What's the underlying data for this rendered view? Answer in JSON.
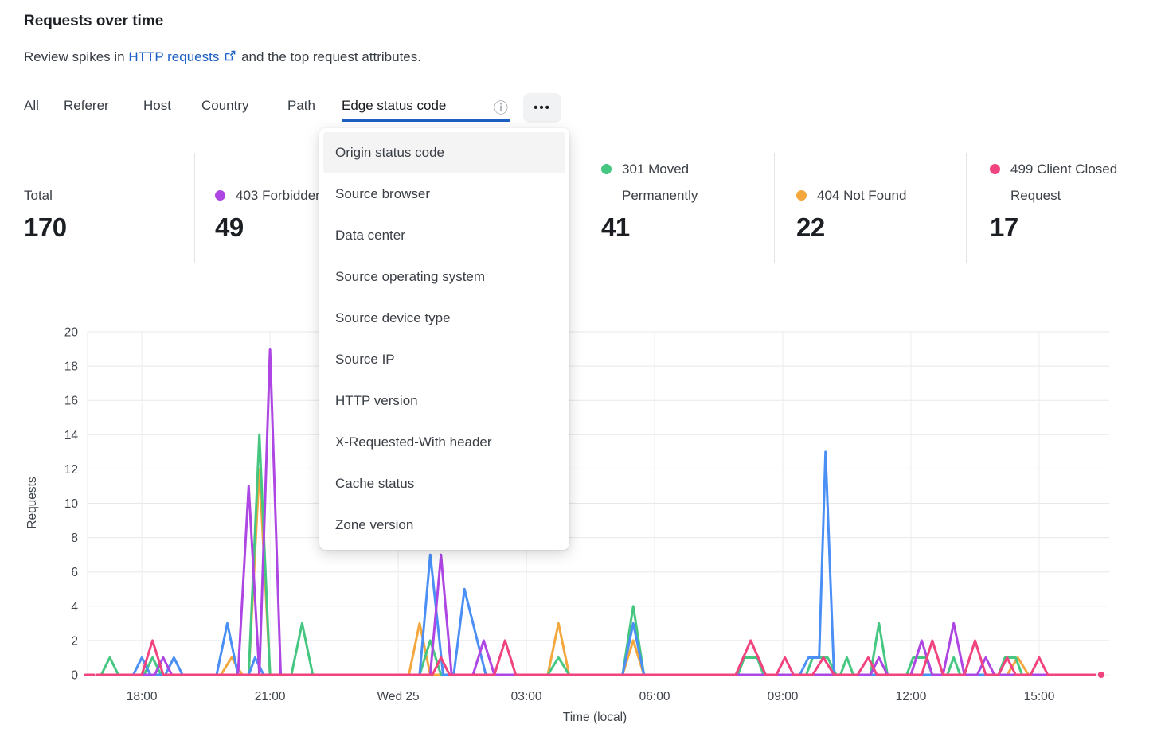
{
  "page": {
    "title": "Requests over time",
    "subtitle_prefix": "Review spikes in",
    "subtitle_link": "HTTP requests",
    "subtitle_suffix": "and the top request attributes."
  },
  "tabs": {
    "items": [
      {
        "label": "All",
        "active": false
      },
      {
        "label": "Referer",
        "active": false
      },
      {
        "label": "Host",
        "active": false
      },
      {
        "label": "Country",
        "active": false
      },
      {
        "label": "Path",
        "active": false
      },
      {
        "label": "Edge status code",
        "active": true
      }
    ],
    "more_label": "•••",
    "info_icon": "ⓘ",
    "active_underline_color": "#1d5fc4"
  },
  "dropdown": {
    "highlighted_index": 0,
    "items": [
      "Origin status code",
      "Source browser",
      "Data center",
      "Source operating system",
      "Source device type",
      "Source IP",
      "HTTP version",
      "X-Requested-With header",
      "Cache status",
      "Zone version"
    ]
  },
  "stats": [
    {
      "label": "Total",
      "value": "170",
      "color": null
    },
    {
      "label": "403 Forbidden",
      "value": "49",
      "color": "#ad46e3"
    },
    {
      "label": "",
      "value": "",
      "color": null,
      "obscured_by_menu": true
    },
    {
      "label": "301 Moved Permanently",
      "value": "41",
      "color": "#45c781"
    },
    {
      "label": "404 Not Found",
      "value": "22",
      "color": "#f3a73c"
    },
    {
      "label": "499 Client Closed Request",
      "value": "17",
      "color": "#f0437f"
    }
  ],
  "chart_data": {
    "type": "line",
    "title": "Requests over time",
    "xlabel": "Time (local)",
    "ylabel": "Requests",
    "ylim": [
      0,
      20
    ],
    "grid": true,
    "y_ticks": [
      0,
      2,
      4,
      6,
      8,
      10,
      12,
      14,
      16,
      18,
      20
    ],
    "x_unit": "decimal hours, 24 = midnight Wed 25",
    "x_domain": [
      16.73,
      40.64
    ],
    "x_ticks": [
      {
        "t": 18,
        "label": "18:00"
      },
      {
        "t": 21,
        "label": "21:00"
      },
      {
        "t": 24,
        "label": "Wed 25"
      },
      {
        "t": 27,
        "label": "03:00"
      },
      {
        "t": 30,
        "label": "06:00"
      },
      {
        "t": 33,
        "label": "09:00"
      },
      {
        "t": 36,
        "label": "12:00"
      },
      {
        "t": 39,
        "label": "15:00"
      }
    ],
    "series": [
      {
        "name": "404 Not Found",
        "color": "#f3a73c",
        "points": [
          [
            16.95,
            0
          ],
          [
            19.85,
            0
          ],
          [
            20.1,
            1
          ],
          [
            20.35,
            0
          ],
          [
            20.5,
            0
          ],
          [
            20.75,
            12
          ],
          [
            21.0,
            0
          ],
          [
            24.25,
            0
          ],
          [
            24.5,
            3
          ],
          [
            24.75,
            0
          ],
          [
            27.5,
            0
          ],
          [
            27.75,
            3
          ],
          [
            28.0,
            0
          ],
          [
            29.25,
            0
          ],
          [
            29.5,
            2
          ],
          [
            29.75,
            0
          ],
          [
            38.25,
            0
          ],
          [
            38.5,
            1
          ],
          [
            38.75,
            0
          ],
          [
            40.3,
            0
          ]
        ]
      },
      {
        "name": "301 Moved Permanently",
        "color": "#45c781",
        "points": [
          [
            16.95,
            0
          ],
          [
            17.05,
            0
          ],
          [
            17.25,
            1
          ],
          [
            17.45,
            0
          ],
          [
            18.05,
            0
          ],
          [
            18.25,
            1
          ],
          [
            18.45,
            0
          ],
          [
            20.5,
            0
          ],
          [
            20.75,
            14
          ],
          [
            21.0,
            0
          ],
          [
            21.5,
            0
          ],
          [
            21.75,
            3
          ],
          [
            22.0,
            0
          ],
          [
            24.5,
            0
          ],
          [
            24.75,
            2
          ],
          [
            25.0,
            0
          ],
          [
            27.5,
            0
          ],
          [
            27.75,
            1
          ],
          [
            28.0,
            0
          ],
          [
            29.25,
            0
          ],
          [
            29.5,
            4
          ],
          [
            29.75,
            0
          ],
          [
            31.95,
            0
          ],
          [
            32.1,
            1
          ],
          [
            32.4,
            1
          ],
          [
            32.55,
            0
          ],
          [
            33.55,
            0
          ],
          [
            33.7,
            1
          ],
          [
            34.05,
            1
          ],
          [
            34.25,
            0
          ],
          [
            34.35,
            0
          ],
          [
            34.5,
            1
          ],
          [
            34.65,
            0
          ],
          [
            35.05,
            0
          ],
          [
            35.25,
            3
          ],
          [
            35.45,
            0
          ],
          [
            35.9,
            0
          ],
          [
            36.05,
            1
          ],
          [
            36.35,
            1
          ],
          [
            36.5,
            0
          ],
          [
            36.85,
            0
          ],
          [
            37.0,
            1
          ],
          [
            37.15,
            0
          ],
          [
            38.05,
            0
          ],
          [
            38.2,
            1
          ],
          [
            38.45,
            1
          ],
          [
            38.6,
            0
          ],
          [
            40.3,
            0
          ]
        ]
      },
      {
        "name": "",
        "label_obscured_by_menu": true,
        "color": "#4a8ff5",
        "points": [
          [
            16.95,
            0
          ],
          [
            17.8,
            0
          ],
          [
            18.0,
            1
          ],
          [
            18.2,
            0
          ],
          [
            18.55,
            0
          ],
          [
            18.75,
            1
          ],
          [
            18.95,
            0
          ],
          [
            19.75,
            0
          ],
          [
            20.0,
            3
          ],
          [
            20.25,
            0
          ],
          [
            20.5,
            0
          ],
          [
            20.65,
            1
          ],
          [
            20.85,
            0
          ],
          [
            24.5,
            0
          ],
          [
            24.75,
            7
          ],
          [
            25.05,
            0
          ],
          [
            25.3,
            0
          ],
          [
            25.55,
            5
          ],
          [
            26.05,
            0
          ],
          [
            29.25,
            0
          ],
          [
            29.5,
            3
          ],
          [
            29.75,
            0
          ],
          [
            33.4,
            0
          ],
          [
            33.6,
            1
          ],
          [
            33.85,
            1
          ],
          [
            34.0,
            13
          ],
          [
            34.2,
            0
          ],
          [
            40.3,
            0
          ]
        ]
      },
      {
        "name": "403 Forbidden",
        "color": "#ad46e3",
        "points": [
          [
            16.95,
            0
          ],
          [
            18.3,
            0
          ],
          [
            18.5,
            1
          ],
          [
            18.7,
            0
          ],
          [
            20.25,
            0
          ],
          [
            20.5,
            11
          ],
          [
            20.75,
            0
          ],
          [
            21.0,
            19
          ],
          [
            21.25,
            0
          ],
          [
            24.75,
            0
          ],
          [
            25.0,
            7
          ],
          [
            25.25,
            0
          ],
          [
            25.75,
            0
          ],
          [
            26.0,
            2
          ],
          [
            26.25,
            0
          ],
          [
            35.05,
            0
          ],
          [
            35.25,
            1
          ],
          [
            35.45,
            0
          ],
          [
            36.0,
            0
          ],
          [
            36.25,
            2
          ],
          [
            36.5,
            0
          ],
          [
            36.75,
            0
          ],
          [
            37.0,
            3
          ],
          [
            37.25,
            0
          ],
          [
            37.55,
            0
          ],
          [
            37.75,
            1
          ],
          [
            37.95,
            0
          ],
          [
            40.3,
            0
          ]
        ]
      },
      {
        "name": "499 Client Closed Request",
        "color": "#f0437f",
        "lead_in": [
          [
            16.68,
            0
          ],
          [
            16.88,
            0
          ]
        ],
        "end_dot_t": 40.45,
        "points": [
          [
            16.95,
            0
          ],
          [
            18.0,
            0
          ],
          [
            18.25,
            2
          ],
          [
            18.5,
            0
          ],
          [
            24.8,
            0
          ],
          [
            25.0,
            1
          ],
          [
            25.2,
            0
          ],
          [
            26.25,
            0
          ],
          [
            26.5,
            2
          ],
          [
            26.75,
            0
          ],
          [
            31.9,
            0
          ],
          [
            32.25,
            2
          ],
          [
            32.6,
            0
          ],
          [
            32.85,
            0
          ],
          [
            33.05,
            1
          ],
          [
            33.25,
            0
          ],
          [
            33.7,
            0
          ],
          [
            33.95,
            1
          ],
          [
            34.2,
            0
          ],
          [
            34.75,
            0
          ],
          [
            35.0,
            1
          ],
          [
            35.2,
            0
          ],
          [
            36.25,
            0
          ],
          [
            36.5,
            2
          ],
          [
            36.75,
            0
          ],
          [
            37.25,
            0
          ],
          [
            37.5,
            2
          ],
          [
            37.75,
            0
          ],
          [
            38.05,
            0
          ],
          [
            38.25,
            1
          ],
          [
            38.45,
            0
          ],
          [
            38.8,
            0
          ],
          [
            39.0,
            1
          ],
          [
            39.2,
            0
          ],
          [
            40.3,
            0
          ]
        ]
      }
    ]
  }
}
